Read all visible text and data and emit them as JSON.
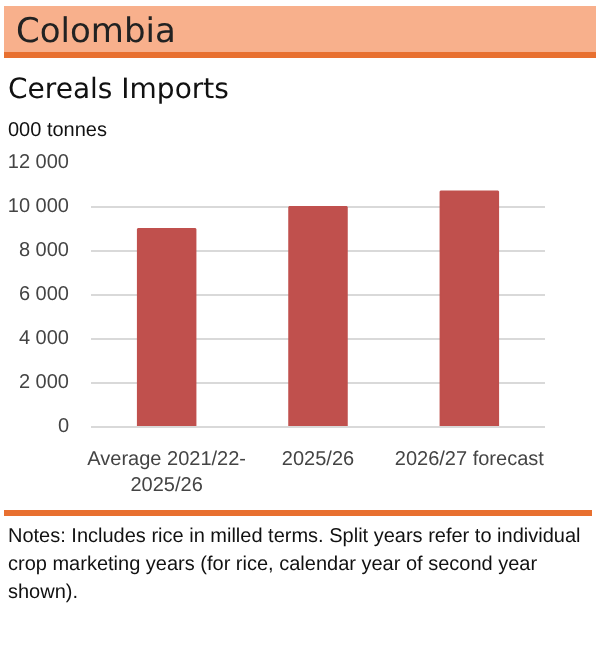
{
  "chart_data": {
    "type": "bar",
    "title": "Colombia",
    "subtitle": "Cereals Imports",
    "ylabel": "000 tonnes",
    "categories": [
      "Average 2021/22-\n2025/26",
      "2025/26",
      "2026/27 forecast"
    ],
    "values": [
      9000,
      10000,
      10700
    ],
    "color": "#c0504d",
    "ylim": [
      0,
      12000
    ],
    "yticks": [
      0,
      {
        "value": 2000,
        "label": "2 000"
      },
      {
        "value": 4000,
        "label": "4 000"
      },
      {
        "value": 6000,
        "label": "6 000"
      },
      {
        "value": 8000,
        "label": "8 000"
      },
      {
        "value": 10000,
        "label": "10 000"
      },
      {
        "value": 12000,
        "label": "12 000"
      }
    ],
    "grid": "y",
    "annotations": [
      "Notes: Includes rice in milled terms. Split years refer to individual crop marketing years (for rice, calendar year of second year shown)."
    ]
  }
}
